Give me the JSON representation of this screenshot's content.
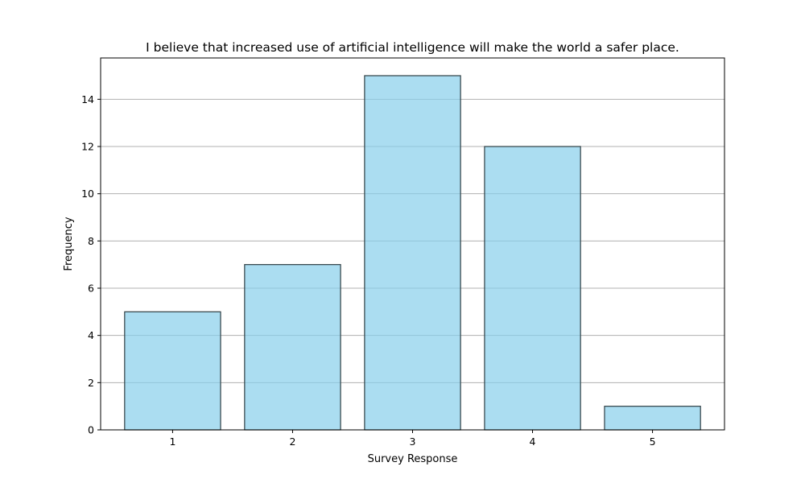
{
  "chart_data": {
    "type": "bar",
    "title": "I believe that increased use of artificial intelligence will make the world a safer place.",
    "xlabel": "Survey Response",
    "ylabel": "Frequency",
    "categories": [
      "1",
      "2",
      "3",
      "4",
      "5"
    ],
    "values": [
      5,
      7,
      15,
      12,
      1
    ],
    "ylim": [
      0,
      15.75
    ],
    "yticks": [
      "0",
      "2",
      "4",
      "6",
      "8",
      "10",
      "12",
      "14"
    ],
    "grid": "y-major",
    "colors": {
      "bar_fill": "#87ceeb",
      "bar_edge": "#2f3f44",
      "grid": "#b0b0b0"
    }
  }
}
